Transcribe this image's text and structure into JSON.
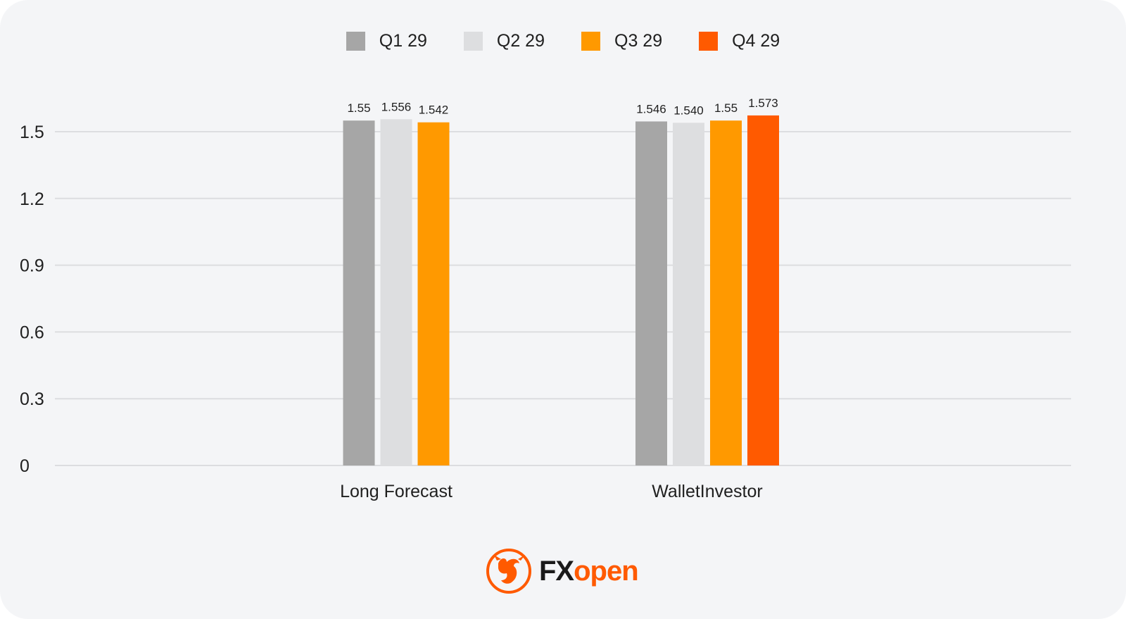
{
  "chart_data": {
    "type": "bar",
    "categories": [
      "Long Forecast",
      "WalletInvestor"
    ],
    "series": [
      {
        "name": "Q1 29",
        "color": "#a6a6a6",
        "values": [
          1.55,
          1.546
        ],
        "labels": [
          "1.55",
          "1.546"
        ]
      },
      {
        "name": "Q2 29",
        "color": "#dddee0",
        "values": [
          1.556,
          1.54
        ],
        "labels": [
          "1.556",
          "1.540"
        ]
      },
      {
        "name": "Q3 29",
        "color": "#ff9900",
        "values": [
          1.542,
          1.55
        ],
        "labels": [
          "1.542",
          "1.55"
        ]
      },
      {
        "name": "Q4 29",
        "color": "#ff5a00",
        "values": [
          null,
          1.573
        ],
        "labels": [
          "",
          "1.573"
        ]
      }
    ],
    "yticks": [
      "0",
      "0.3",
      "0.6",
      "0.9",
      "1.2",
      "1.5"
    ],
    "ylim": [
      0,
      1.5
    ],
    "grid": true,
    "legend_position": "top"
  },
  "logo": {
    "fx": "FX",
    "open": "open"
  },
  "colors": {
    "background": "#f4f5f7",
    "grid": "#dcdde0",
    "text": "#1f1f1f",
    "brand": "#ff5a00"
  }
}
